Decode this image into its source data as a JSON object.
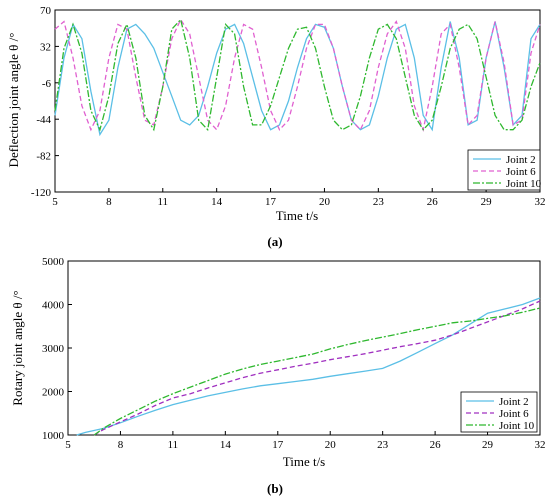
{
  "chart_data": [
    {
      "type": "line",
      "panel": "(a)",
      "xlabel": "Time t/s",
      "ylabel": "Deflection joint angle  θ /°",
      "xlim": [
        5,
        32
      ],
      "ylim": [
        -120,
        70
      ],
      "xticks": [
        5,
        8,
        11,
        14,
        17,
        20,
        23,
        26,
        29,
        32
      ],
      "yticks": [
        70,
        32,
        -6,
        -44,
        -82,
        -120
      ],
      "legend_position": "bottom-right",
      "series": [
        {
          "name": "Joint 2",
          "color": "#5bbfe6",
          "dash": "",
          "x": [
            5.0,
            5.5,
            6.0,
            6.5,
            7.0,
            7.5,
            8.0,
            8.5,
            9.0,
            9.5,
            10.0,
            10.5,
            11.0,
            11.5,
            12.0,
            12.5,
            13.0,
            13.5,
            14.0,
            14.5,
            15.0,
            15.5,
            16.0,
            16.5,
            17.0,
            17.5,
            18.0,
            18.5,
            19.0,
            19.5,
            20.0,
            20.5,
            21.0,
            21.5,
            22.0,
            22.5,
            23.0,
            23.5,
            24.0,
            24.5,
            25.0,
            25.5,
            26.0,
            26.5,
            27.0,
            27.5,
            28.0,
            28.5,
            29.0,
            29.5,
            30.0,
            30.5,
            31.0,
            31.5,
            32.0
          ],
          "values": [
            -40,
            20,
            55,
            40,
            -15,
            -60,
            -45,
            10,
            50,
            55,
            45,
            30,
            5,
            -20,
            -45,
            -50,
            -40,
            -10,
            25,
            50,
            55,
            35,
            0,
            -35,
            -55,
            -50,
            -25,
            10,
            40,
            55,
            52,
            30,
            -10,
            -45,
            -55,
            -50,
            -20,
            20,
            50,
            55,
            20,
            -40,
            -55,
            10,
            58,
            20,
            -50,
            -45,
            20,
            58,
            10,
            -50,
            -40,
            40,
            55
          ]
        },
        {
          "name": "Joint 6",
          "color": "#e060d0",
          "dash": "5,3",
          "x": [
            5.0,
            5.5,
            6.0,
            6.5,
            7.0,
            7.5,
            8.0,
            8.5,
            9.0,
            9.5,
            10.0,
            10.5,
            11.0,
            11.5,
            12.0,
            12.5,
            13.0,
            13.5,
            14.0,
            14.5,
            15.0,
            15.5,
            16.0,
            16.5,
            17.0,
            17.5,
            18.0,
            18.5,
            19.0,
            19.5,
            20.0,
            20.5,
            21.0,
            21.5,
            22.0,
            22.5,
            23.0,
            23.5,
            24.0,
            24.5,
            25.0,
            25.5,
            26.0,
            26.5,
            27.0,
            27.5,
            28.0,
            28.5,
            29.0,
            29.5,
            30.0,
            30.5,
            31.0,
            31.5,
            32.0
          ],
          "values": [
            50,
            58,
            20,
            -30,
            -55,
            -35,
            20,
            55,
            50,
            0,
            -45,
            -50,
            -10,
            40,
            60,
            45,
            0,
            -45,
            -55,
            -30,
            20,
            55,
            50,
            10,
            -35,
            -55,
            -45,
            -10,
            30,
            55,
            55,
            30,
            -10,
            -45,
            -55,
            -35,
            10,
            45,
            58,
            30,
            -30,
            -55,
            -10,
            45,
            55,
            10,
            -50,
            -40,
            20,
            58,
            15,
            -50,
            -45,
            25,
            55
          ]
        },
        {
          "name": "Joint 10",
          "color": "#2fb82f",
          "dash": "7,2,2,2",
          "x": [
            5.0,
            5.5,
            6.0,
            6.5,
            7.0,
            7.5,
            8.0,
            8.5,
            9.0,
            9.5,
            10.0,
            10.5,
            11.0,
            11.5,
            12.0,
            12.5,
            13.0,
            13.5,
            14.0,
            14.5,
            15.0,
            15.5,
            16.0,
            16.5,
            17.0,
            17.5,
            18.0,
            18.5,
            19.0,
            19.5,
            20.0,
            20.5,
            21.0,
            21.5,
            22.0,
            22.5,
            23.0,
            23.5,
            24.0,
            24.5,
            25.0,
            25.5,
            26.0,
            26.5,
            27.0,
            27.5,
            28.0,
            28.5,
            29.0,
            29.5,
            30.0,
            30.5,
            31.0,
            31.5,
            32.0
          ],
          "values": [
            -35,
            30,
            55,
            25,
            -35,
            -55,
            -20,
            35,
            55,
            20,
            -40,
            -55,
            -10,
            50,
            60,
            20,
            -45,
            -55,
            0,
            55,
            45,
            -10,
            -50,
            -50,
            -30,
            0,
            30,
            50,
            52,
            30,
            -10,
            -45,
            -55,
            -50,
            -20,
            20,
            50,
            55,
            40,
            0,
            -40,
            -55,
            -45,
            -10,
            30,
            50,
            55,
            40,
            0,
            -40,
            -55,
            -55,
            -45,
            -10,
            15
          ]
        }
      ]
    },
    {
      "type": "line",
      "panel": "(b)",
      "xlabel": "Time t/s",
      "ylabel": "Rotary joint angle  θ /°",
      "xlim": [
        5,
        32
      ],
      "ylim": [
        1000,
        5000
      ],
      "xticks": [
        5,
        8,
        11,
        14,
        17,
        20,
        23,
        26,
        29,
        32
      ],
      "yticks": [
        1000,
        2000,
        3000,
        4000,
        5000
      ],
      "legend_position": "bottom-right",
      "series": [
        {
          "name": "Joint 2",
          "color": "#5bbfe6",
          "dash": "",
          "x": [
            5.5,
            6,
            7,
            8,
            9,
            10,
            11,
            12,
            13,
            14,
            15,
            16,
            17,
            18,
            19,
            20,
            21,
            22,
            23,
            24,
            25,
            26,
            27,
            28,
            29,
            30,
            31,
            32
          ],
          "values": [
            1000,
            1060,
            1150,
            1280,
            1430,
            1570,
            1700,
            1800,
            1900,
            1980,
            2060,
            2130,
            2180,
            2230,
            2280,
            2350,
            2410,
            2470,
            2530,
            2700,
            2900,
            3100,
            3300,
            3550,
            3800,
            3900,
            4000,
            4150
          ]
        },
        {
          "name": "Joint 6",
          "color": "#a030c0",
          "dash": "5,3",
          "x": [
            6.5,
            7,
            8,
            9,
            10,
            11,
            12,
            13,
            14,
            15,
            16,
            17,
            18,
            19,
            20,
            21,
            22,
            23,
            24,
            25,
            26,
            27,
            28,
            29,
            30,
            31,
            32
          ],
          "values": [
            1000,
            1120,
            1300,
            1480,
            1680,
            1850,
            1950,
            2080,
            2200,
            2320,
            2420,
            2500,
            2580,
            2650,
            2730,
            2800,
            2870,
            2950,
            3030,
            3100,
            3180,
            3300,
            3450,
            3600,
            3750,
            3900,
            4080
          ]
        },
        {
          "name": "Joint 10",
          "color": "#2fb82f",
          "dash": "7,2,2,2",
          "x": [
            6.5,
            7,
            8,
            9,
            10,
            11,
            12,
            13,
            14,
            15,
            16,
            17,
            18,
            19,
            20,
            21,
            22,
            23,
            24,
            25,
            26,
            27,
            28,
            29,
            30,
            31,
            32
          ],
          "values": [
            1000,
            1150,
            1380,
            1580,
            1780,
            1950,
            2100,
            2250,
            2400,
            2520,
            2620,
            2700,
            2780,
            2860,
            2980,
            3080,
            3170,
            3250,
            3330,
            3420,
            3500,
            3580,
            3620,
            3680,
            3740,
            3820,
            3920
          ]
        }
      ]
    }
  ]
}
